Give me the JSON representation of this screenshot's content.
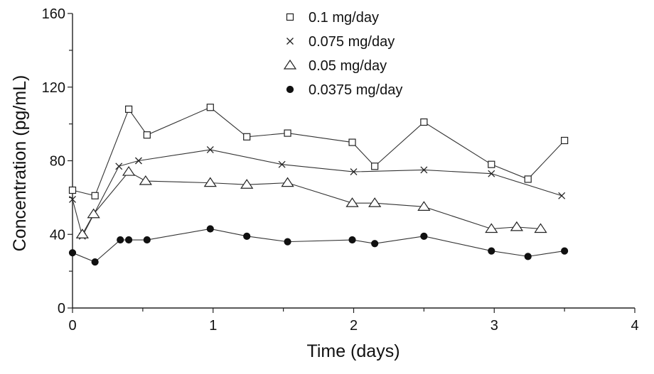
{
  "chart_data": {
    "type": "line",
    "title": "",
    "xlabel": "Time (days)",
    "ylabel": "Concentration (pg/mL)",
    "xlim": [
      0,
      4
    ],
    "ylim": [
      0,
      160
    ],
    "x_ticks": [
      0,
      1,
      2,
      3,
      4
    ],
    "y_ticks": [
      0,
      40,
      80,
      120,
      160
    ],
    "grid": false,
    "legend_position": "top-center",
    "series": [
      {
        "name": "0.1 mg/day",
        "marker": "square",
        "x": [
          0,
          0.16,
          0.4,
          0.53,
          0.98,
          1.24,
          1.53,
          1.99,
          2.15,
          2.5,
          2.98,
          3.24,
          3.5
        ],
        "y": [
          64,
          61,
          108,
          94,
          109,
          93,
          95,
          90,
          77,
          101,
          78,
          70,
          91
        ]
      },
      {
        "name": "0.075 mg/day",
        "marker": "x",
        "x": [
          0,
          0.07,
          0.33,
          0.47,
          0.98,
          1.49,
          2.0,
          2.5,
          2.98,
          3.48
        ],
        "y": [
          59,
          39,
          77,
          80,
          86,
          78,
          74,
          75,
          73,
          61
        ]
      },
      {
        "name": "0.05 mg/day",
        "marker": "triangle",
        "x": [
          0.07,
          0.15,
          0.4,
          0.52,
          0.98,
          1.24,
          1.53,
          1.99,
          2.15,
          2.5,
          2.98,
          3.16,
          3.33
        ],
        "y": [
          40,
          51,
          74,
          69,
          68,
          67,
          68,
          57,
          57,
          55,
          43,
          44,
          43
        ]
      },
      {
        "name": "0.0375 mg/day",
        "marker": "circle",
        "x": [
          0,
          0.16,
          0.34,
          0.4,
          0.53,
          0.98,
          1.24,
          1.53,
          1.99,
          2.15,
          2.5,
          2.98,
          3.24,
          3.5
        ],
        "y": [
          30,
          25,
          37,
          37,
          37,
          43,
          39,
          36,
          37,
          35,
          39,
          31,
          28,
          31
        ]
      }
    ]
  }
}
